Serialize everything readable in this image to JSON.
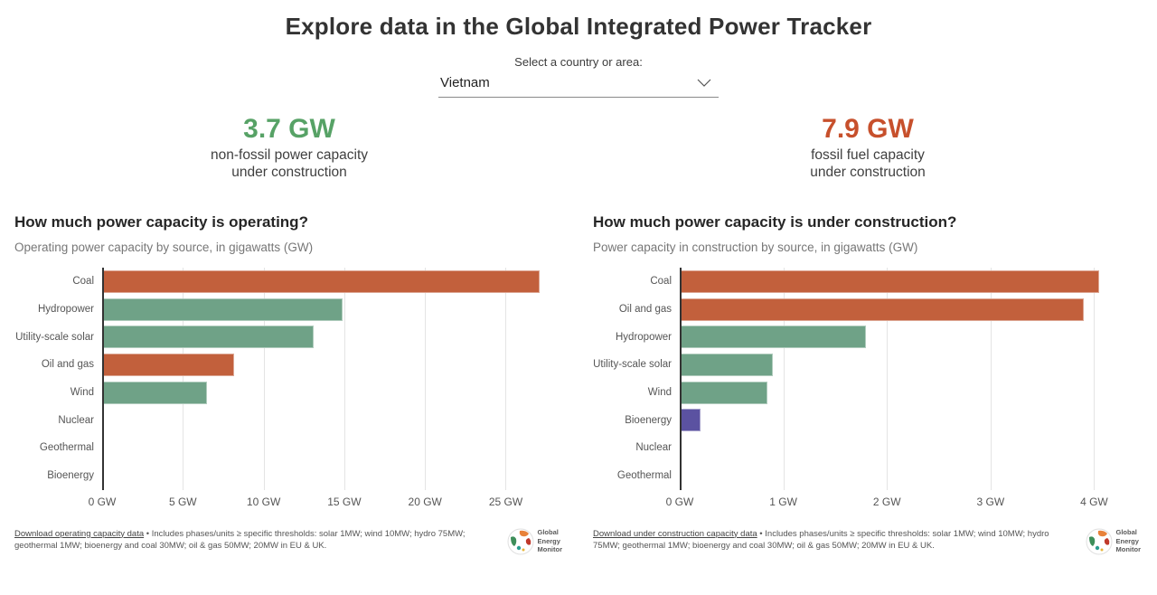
{
  "header": {
    "title": "Explore data in the Global Integrated Power Tracker"
  },
  "country_selector": {
    "label": "Select a country or area:",
    "value": "Vietnam",
    "chevron_icon": "chevron-down"
  },
  "stats": {
    "nonfossil": {
      "value": "3.7 GW",
      "label_line1": "non-fossil power capacity",
      "label_line2": "under construction",
      "color": "#57a266"
    },
    "fossil": {
      "value": "7.9 GW",
      "label_line1": "fossil fuel capacity",
      "label_line2": "under construction",
      "color": "#c7502c"
    }
  },
  "colors": {
    "fossil_bar": "#c2603c",
    "nonfossil_bar": "#6fa287",
    "bioenergy_bar": "#5b52a1",
    "gridline": "#e4e4e4",
    "axis": "#333333"
  },
  "chart_data": [
    {
      "type": "bar",
      "orientation": "horizontal",
      "title": "How much power capacity is operating?",
      "subtitle": "Operating power capacity by source, in gigawatts (GW)",
      "categories": [
        "Coal",
        "Hydropower",
        "Utility-scale solar",
        "Oil and gas",
        "Wind",
        "Nuclear",
        "Geothermal",
        "Bioenergy"
      ],
      "values": [
        27.1,
        14.9,
        13.1,
        8.2,
        6.5,
        0,
        0,
        0
      ],
      "bar_colors": [
        "#c2603c",
        "#6fa287",
        "#6fa287",
        "#c2603c",
        "#6fa287",
        "#6fa287",
        "#6fa287",
        "#6fa287"
      ],
      "unit": "GW",
      "x_ticks": [
        "0 GW",
        "5 GW",
        "10 GW",
        "15 GW",
        "20 GW",
        "25 GW"
      ],
      "tick_values": [
        0,
        5,
        10,
        15,
        20,
        25
      ],
      "xlim": [
        0,
        28.5
      ],
      "grid": true,
      "legend": "none"
    },
    {
      "type": "bar",
      "orientation": "horizontal",
      "title": "How much power capacity is under construction?",
      "subtitle": "Power capacity in construction by source, in gigawatts (GW)",
      "categories": [
        "Coal",
        "Oil and gas",
        "Hydropower",
        "Utility-scale solar",
        "Wind",
        "Bioenergy",
        "Nuclear",
        "Geothermal"
      ],
      "values": [
        4.05,
        3.9,
        1.8,
        0.9,
        0.85,
        0.2,
        0,
        0
      ],
      "bar_colors": [
        "#c2603c",
        "#c2603c",
        "#6fa287",
        "#6fa287",
        "#6fa287",
        "#5b52a1",
        "#6fa287",
        "#6fa287"
      ],
      "unit": "GW",
      "x_ticks": [
        "0 GW",
        "1 GW",
        "2 GW",
        "3 GW",
        "4 GW"
      ],
      "tick_values": [
        0,
        1,
        2,
        3,
        4
      ],
      "xlim": [
        0,
        4.45
      ],
      "grid": true,
      "legend": "none"
    }
  ],
  "footers": {
    "left": {
      "link_text": "Download operating capacity data",
      "rest_text": " • Includes phases/units ≥ specific thresholds: solar 1MW; wind 10MW; hydro 75MW; geothermal 1MW; bioenergy and coal 30MW; oil & gas 50MW; 20MW in EU & UK."
    },
    "right": {
      "link_text": "Download under construction capacity data",
      "rest_text": " • Includes phases/units ≥ specific thresholds: solar 1MW; wind 10MW; hydro 75MW; geothermal 1MW; bioenergy and coal 30MW; oil & gas 50MW; 20MW in EU & UK."
    }
  },
  "logo": {
    "line1": "Global",
    "line2": "Energy",
    "line3": "Monitor"
  }
}
